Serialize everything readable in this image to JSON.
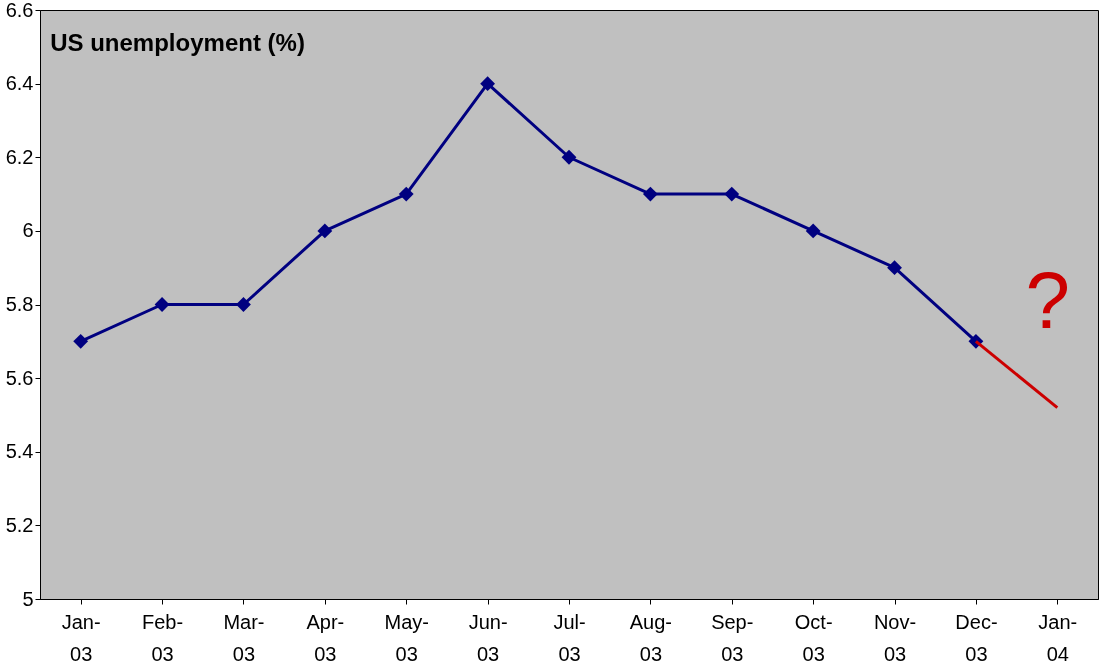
{
  "chart_data": {
    "type": "line",
    "title": "US unemployment (%)",
    "categories": [
      "Jan-03",
      "Feb-03",
      "Mar-03",
      "Apr-03",
      "May-03",
      "Jun-03",
      "Jul-03",
      "Aug-03",
      "Sep-03",
      "Oct-03",
      "Nov-03",
      "Dec-03",
      "Jan-04"
    ],
    "series": [
      {
        "color": "#000080",
        "values": [
          5.7,
          5.8,
          5.8,
          6.0,
          6.1,
          6.4,
          6.2,
          6.1,
          6.1,
          6.0,
          5.9,
          5.7,
          null
        ],
        "marker": "diamond"
      },
      {
        "color": "#cc0000",
        "values": [
          null,
          null,
          null,
          null,
          null,
          null,
          null,
          null,
          null,
          null,
          null,
          5.7,
          5.52
        ],
        "marker": "none"
      }
    ],
    "annotations": [
      "?"
    ],
    "ylim": [
      5,
      6.6
    ],
    "yticks": [
      5,
      5.2,
      5.4,
      5.6,
      5.8,
      6,
      6.2,
      6.4,
      6.6
    ],
    "grid": false,
    "line_style": "solid"
  }
}
